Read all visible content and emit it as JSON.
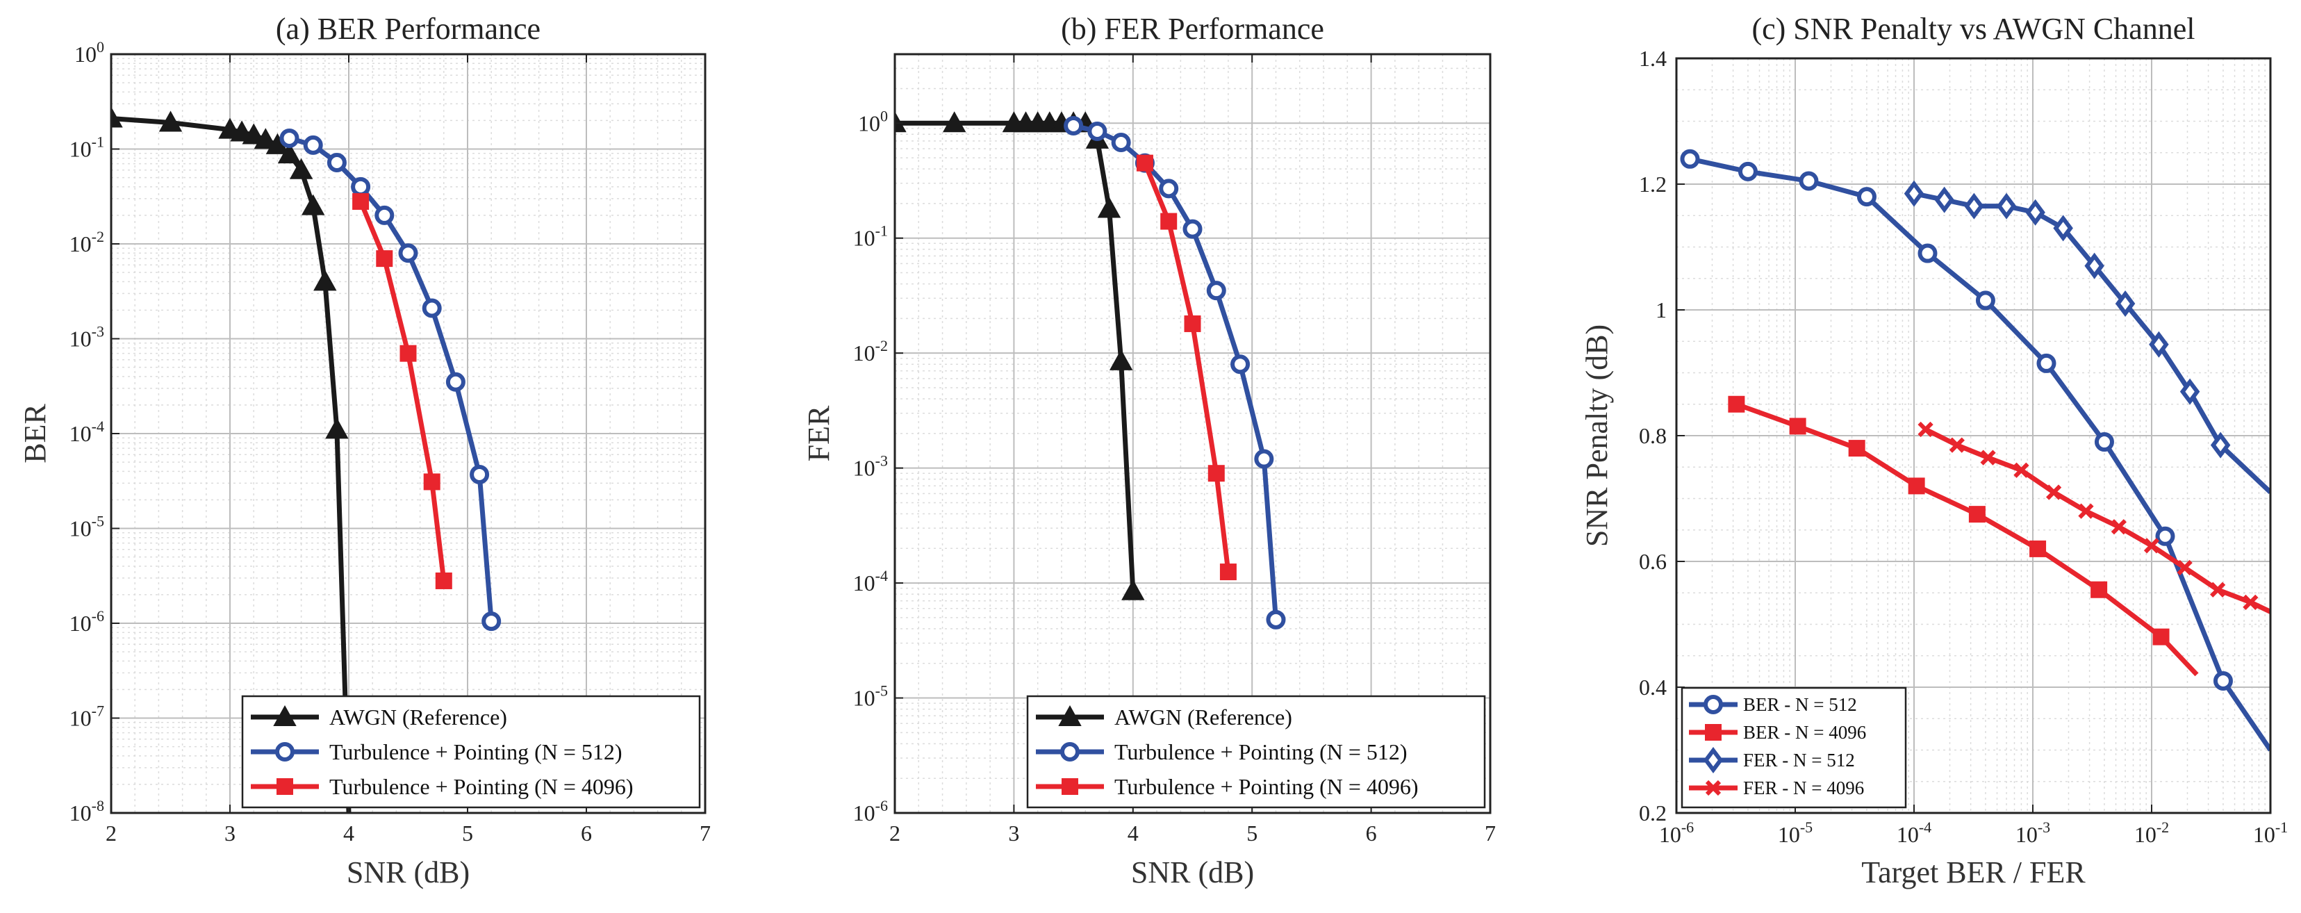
{
  "colors": {
    "awgn": "#1a1a1a",
    "n512": "#3050a0",
    "n4096": "#e8252d"
  },
  "chart_data": [
    {
      "type": "line",
      "title": "(a) BER Performance",
      "xlabel": "SNR (dB)",
      "ylabel": "BER",
      "xlim": [
        2,
        7
      ],
      "ylim_log10": [
        -8,
        0
      ],
      "yscale": "log",
      "grid": "on",
      "legend_position": "bottom-right",
      "xticks": [
        "2",
        "3",
        "4",
        "5",
        "6",
        "7"
      ],
      "yticks": [
        {
          "base": "10",
          "exp": "0"
        },
        {
          "base": "10",
          "exp": "-1"
        },
        {
          "base": "10",
          "exp": "-2"
        },
        {
          "base": "10",
          "exp": "-3"
        },
        {
          "base": "10",
          "exp": "-4"
        },
        {
          "base": "10",
          "exp": "-5"
        },
        {
          "base": "10",
          "exp": "-6"
        },
        {
          "base": "10",
          "exp": "-7"
        },
        {
          "base": "10",
          "exp": "-8"
        }
      ],
      "series": [
        {
          "name": "AWGN (Reference)",
          "color": "#1a1a1a",
          "marker": "triangle",
          "x": [
            2.0,
            2.5,
            3.0,
            3.1,
            3.2,
            3.3,
            3.4,
            3.5,
            3.6,
            3.7,
            3.8,
            3.9,
            4.0
          ],
          "y": [
            0.21,
            0.19,
            0.16,
            0.15,
            0.14,
            0.125,
            0.11,
            0.088,
            0.06,
            0.025,
            0.004,
            0.00011,
            1e-08
          ],
          "marker_count": 12
        },
        {
          "name": "Turbulence + Pointing (N = 512)",
          "color": "#3050a0",
          "marker": "circle",
          "x": [
            3.5,
            3.7,
            3.9,
            4.1,
            4.3,
            4.5,
            4.7,
            4.9,
            5.1,
            5.2
          ],
          "y": [
            0.13,
            0.11,
            0.072,
            0.04,
            0.02,
            0.008,
            0.0021,
            0.00035,
            3.7e-05,
            1.05e-06
          ]
        },
        {
          "name": "Turbulence + Pointing (N = 4096)",
          "color": "#e8252d",
          "marker": "square",
          "x": [
            4.1,
            4.3,
            4.5,
            4.7,
            4.8
          ],
          "y": [
            0.028,
            0.007,
            0.0007,
            3.1e-05,
            2.8e-06
          ]
        }
      ]
    },
    {
      "type": "line",
      "title": "(b) FER Performance",
      "xlabel": "SNR (dB)",
      "ylabel": "FER",
      "xlim": [
        2,
        7
      ],
      "ylim_log10": [
        -6,
        0.6
      ],
      "yscale": "log",
      "grid": "on",
      "legend_position": "bottom-right",
      "xticks": [
        "2",
        "3",
        "4",
        "5",
        "6",
        "7"
      ],
      "yticks": [
        {
          "base": "10",
          "exp": "0"
        },
        {
          "base": "10",
          "exp": "-1"
        },
        {
          "base": "10",
          "exp": "-2"
        },
        {
          "base": "10",
          "exp": "-3"
        },
        {
          "base": "10",
          "exp": "-4"
        },
        {
          "base": "10",
          "exp": "-5"
        },
        {
          "base": "10",
          "exp": "-6"
        }
      ],
      "series": [
        {
          "name": "AWGN (Reference)",
          "color": "#1a1a1a",
          "marker": "triangle",
          "x": [
            2.0,
            2.5,
            3.0,
            3.1,
            3.2,
            3.3,
            3.4,
            3.5,
            3.6,
            3.7,
            3.8,
            3.9,
            4.0
          ],
          "y": [
            1.0,
            1.0,
            1.0,
            1.0,
            1.0,
            1.0,
            1.0,
            1.0,
            1.0,
            0.72,
            0.18,
            0.0085,
            8.5e-05
          ]
        },
        {
          "name": "Turbulence + Pointing (N = 512)",
          "color": "#3050a0",
          "marker": "circle",
          "x": [
            3.5,
            3.6,
            3.8,
            4.0,
            4.2,
            4.4,
            4.6,
            4.8,
            4.95,
            5.1,
            5.2
          ],
          "y": [
            1.0,
            0.98,
            0.85,
            0.68,
            0.45,
            0.27,
            0.12,
            0.035,
            0.008,
            0.0012,
            4.8e-05
          ],
          "x_plot": [
            3.5,
            3.7,
            3.9,
            4.1,
            4.3,
            4.5,
            4.7,
            4.9,
            5.1,
            5.2
          ],
          "y_plot": [
            0.95,
            0.85,
            0.68,
            0.45,
            0.27,
            0.12,
            0.035,
            0.008,
            0.0012,
            4.8e-05
          ]
        },
        {
          "name": "Turbulence + Pointing (N = 4096)",
          "color": "#e8252d",
          "marker": "square",
          "x": [
            4.1,
            4.3,
            4.5,
            4.7,
            4.8
          ],
          "y": [
            0.45,
            0.14,
            0.018,
            0.0009,
            0.000125
          ]
        }
      ]
    },
    {
      "type": "line",
      "title": "(c) SNR Penalty vs AWGN Channel",
      "xlabel": "Target BER / FER",
      "ylabel": "SNR Penalty (dB)",
      "xscale": "log",
      "xlim_log10": [
        -6,
        -1
      ],
      "ylim": [
        0.2,
        1.4
      ],
      "grid": "on",
      "legend_position": "bottom-left",
      "xticks": [
        {
          "base": "10",
          "exp": "-6"
        },
        {
          "base": "10",
          "exp": "-5"
        },
        {
          "base": "10",
          "exp": "-4"
        },
        {
          "base": "10",
          "exp": "-3"
        },
        {
          "base": "10",
          "exp": "-2"
        },
        {
          "base": "10",
          "exp": "-1"
        }
      ],
      "yticks": [
        "0.2",
        "0.4",
        "0.6",
        "0.8",
        "1",
        "1.2",
        "1.4"
      ],
      "series": [
        {
          "name": "BER - N = 512",
          "color": "#3050a0",
          "marker": "circle",
          "x": [
            1.3e-06,
            4e-06,
            1.3e-05,
            4e-05,
            0.00013,
            0.0004,
            0.0013,
            0.004,
            0.013,
            0.04,
            0.1
          ],
          "y": [
            1.24,
            1.22,
            1.205,
            1.18,
            1.09,
            1.015,
            0.915,
            0.79,
            0.64,
            0.41,
            0.3
          ],
          "marker_count": 10
        },
        {
          "name": "BER - N = 4096",
          "color": "#e8252d",
          "marker": "square",
          "x": [
            3.2e-06,
            1.05e-05,
            3.3e-05,
            0.000105,
            0.00034,
            0.0011,
            0.0036,
            0.012,
            0.024
          ],
          "y": [
            0.85,
            0.815,
            0.78,
            0.72,
            0.675,
            0.62,
            0.555,
            0.48,
            0.42
          ],
          "marker_count": 8
        },
        {
          "name": "FER - N = 512",
          "color": "#3050a0",
          "marker": "diamond",
          "x": [
            0.0001,
            0.00018,
            0.00032,
            0.0006,
            0.00105,
            0.0018,
            0.0033,
            0.006,
            0.0115,
            0.021,
            0.038,
            0.1
          ],
          "y": [
            1.185,
            1.175,
            1.165,
            1.165,
            1.155,
            1.13,
            1.07,
            1.01,
            0.945,
            0.87,
            0.785,
            0.71
          ],
          "marker_count": 11
        },
        {
          "name": "FER - N = 4096",
          "color": "#e8252d",
          "marker": "x",
          "x": [
            0.000125,
            0.00023,
            0.00042,
            0.0008,
            0.0015,
            0.0028,
            0.0053,
            0.01,
            0.019,
            0.036,
            0.068,
            0.1
          ],
          "y": [
            0.81,
            0.785,
            0.765,
            0.745,
            0.71,
            0.68,
            0.655,
            0.625,
            0.59,
            0.555,
            0.535,
            0.52
          ],
          "marker_count": 11
        }
      ]
    }
  ]
}
